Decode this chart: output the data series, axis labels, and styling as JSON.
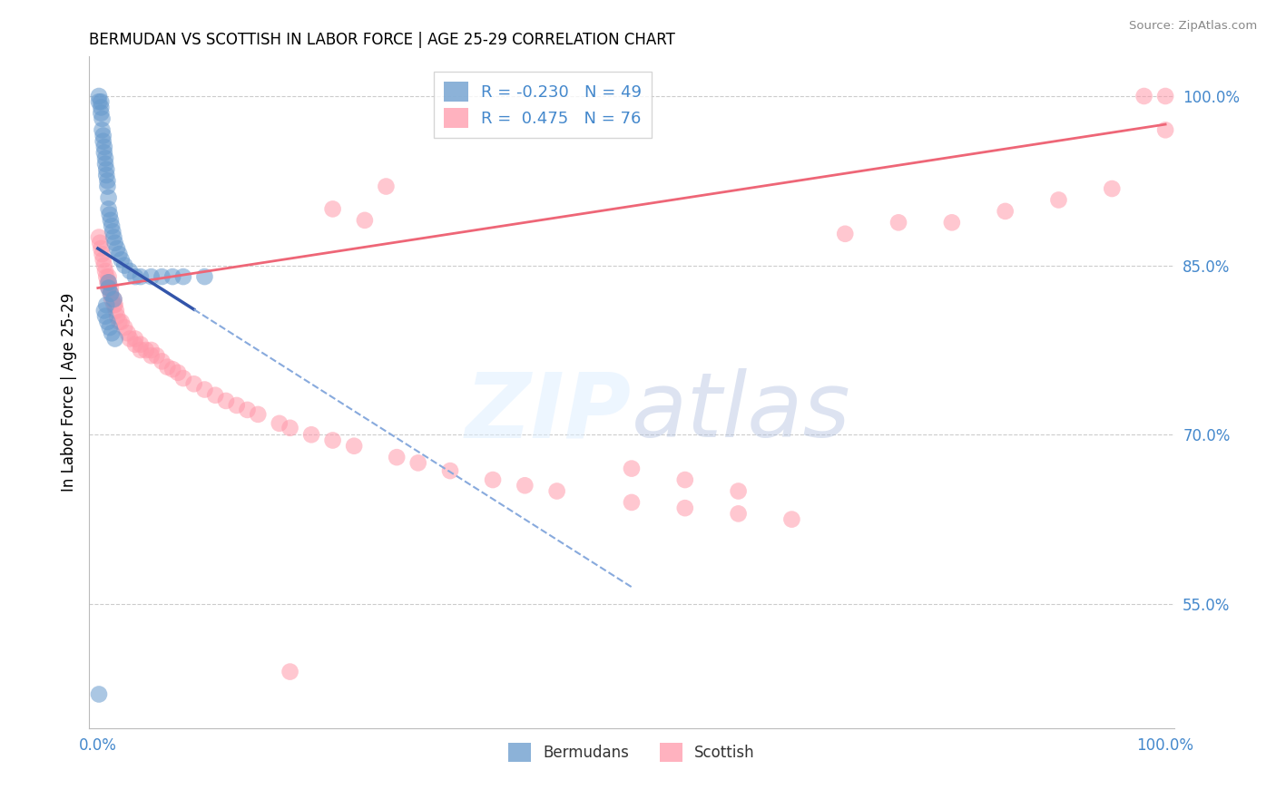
{
  "title": "BERMUDAN VS SCOTTISH IN LABOR FORCE | AGE 25-29 CORRELATION CHART",
  "source": "Source: ZipAtlas.com",
  "ylabel": "In Labor Force | Age 25-29",
  "watermark": "ZIPatlas",
  "blue_color": "#6699CC",
  "pink_color": "#FF99AA",
  "blue_line_solid_color": "#3355AA",
  "blue_line_dash_color": "#88AADD",
  "pink_line_color": "#EE6677",
  "grid_color": "#CCCCCC",
  "tick_color": "#4488CC",
  "xlim": [
    0.0,
    1.0
  ],
  "ylim": [
    0.44,
    1.03
  ],
  "ytick_positions": [
    0.55,
    0.7,
    0.85,
    1.0
  ],
  "ytick_labels": [
    "55.0%",
    "70.0%",
    "85.0%",
    "100.0%"
  ],
  "xtick_positions": [
    0.0,
    1.0
  ],
  "xtick_labels": [
    "0.0%",
    "100.0%"
  ],
  "legend_entries": [
    {
      "label": "R = -0.230   N = 49",
      "color": "#6699CC"
    },
    {
      "label": "R =  0.475   N = 76",
      "color": "#FF99AA"
    }
  ],
  "bottom_legend_entries": [
    {
      "label": "Bermudans",
      "color": "#6699CC"
    },
    {
      "label": "Scottish",
      "color": "#FF99AA"
    }
  ],
  "blue_scatter_x": [
    0.001,
    0.001,
    0.003,
    0.003,
    0.003,
    0.004,
    0.004,
    0.005,
    0.005,
    0.006,
    0.006,
    0.007,
    0.007,
    0.008,
    0.008,
    0.009,
    0.009,
    0.01,
    0.01,
    0.011,
    0.012,
    0.013,
    0.014,
    0.015,
    0.016,
    0.018,
    0.02,
    0.022,
    0.025,
    0.03,
    0.035,
    0.04,
    0.05,
    0.06,
    0.07,
    0.08,
    0.1,
    0.01,
    0.01,
    0.012,
    0.015,
    0.008,
    0.006,
    0.007,
    0.009,
    0.011,
    0.013,
    0.016,
    0.001
  ],
  "blue_scatter_y": [
    1.0,
    0.995,
    0.995,
    0.99,
    0.985,
    0.98,
    0.97,
    0.965,
    0.96,
    0.955,
    0.95,
    0.945,
    0.94,
    0.935,
    0.93,
    0.925,
    0.92,
    0.91,
    0.9,
    0.895,
    0.89,
    0.885,
    0.88,
    0.875,
    0.87,
    0.865,
    0.86,
    0.855,
    0.85,
    0.845,
    0.84,
    0.84,
    0.84,
    0.84,
    0.84,
    0.84,
    0.84,
    0.835,
    0.83,
    0.825,
    0.82,
    0.815,
    0.81,
    0.805,
    0.8,
    0.795,
    0.79,
    0.785,
    0.47
  ],
  "pink_scatter_x": [
    0.001,
    0.002,
    0.003,
    0.004,
    0.005,
    0.006,
    0.007,
    0.008,
    0.009,
    0.01,
    0.01,
    0.01,
    0.012,
    0.012,
    0.013,
    0.015,
    0.015,
    0.016,
    0.017,
    0.018,
    0.02,
    0.022,
    0.025,
    0.028,
    0.03,
    0.035,
    0.035,
    0.04,
    0.04,
    0.045,
    0.05,
    0.05,
    0.055,
    0.06,
    0.065,
    0.07,
    0.075,
    0.08,
    0.09,
    0.1,
    0.11,
    0.12,
    0.13,
    0.14,
    0.15,
    0.17,
    0.18,
    0.2,
    0.22,
    0.24,
    0.28,
    0.3,
    0.33,
    0.37,
    0.4,
    0.43,
    0.5,
    0.55,
    0.6,
    0.65,
    0.7,
    0.75,
    0.8,
    0.85,
    0.9,
    0.95,
    0.98,
    1.0,
    1.0,
    0.25,
    0.18,
    0.5,
    0.55,
    0.6,
    0.22,
    0.27
  ],
  "pink_scatter_y": [
    0.875,
    0.87,
    0.865,
    0.86,
    0.855,
    0.85,
    0.845,
    0.84,
    0.835,
    0.83,
    0.835,
    0.84,
    0.83,
    0.825,
    0.82,
    0.815,
    0.82,
    0.815,
    0.81,
    0.805,
    0.8,
    0.8,
    0.795,
    0.79,
    0.785,
    0.78,
    0.785,
    0.78,
    0.775,
    0.775,
    0.77,
    0.775,
    0.77,
    0.765,
    0.76,
    0.758,
    0.755,
    0.75,
    0.745,
    0.74,
    0.735,
    0.73,
    0.726,
    0.722,
    0.718,
    0.71,
    0.706,
    0.7,
    0.695,
    0.69,
    0.68,
    0.675,
    0.668,
    0.66,
    0.655,
    0.65,
    0.64,
    0.635,
    0.63,
    0.625,
    0.878,
    0.888,
    0.888,
    0.898,
    0.908,
    0.918,
    1.0,
    1.0,
    0.97,
    0.89,
    0.49,
    0.67,
    0.66,
    0.65,
    0.9,
    0.92
  ],
  "blue_trend_x0": 0.0,
  "blue_trend_y0": 0.865,
  "blue_trend_slope": -0.6,
  "pink_trend_x0": 0.0,
  "pink_trend_y0": 0.83,
  "pink_trend_slope": 0.145
}
